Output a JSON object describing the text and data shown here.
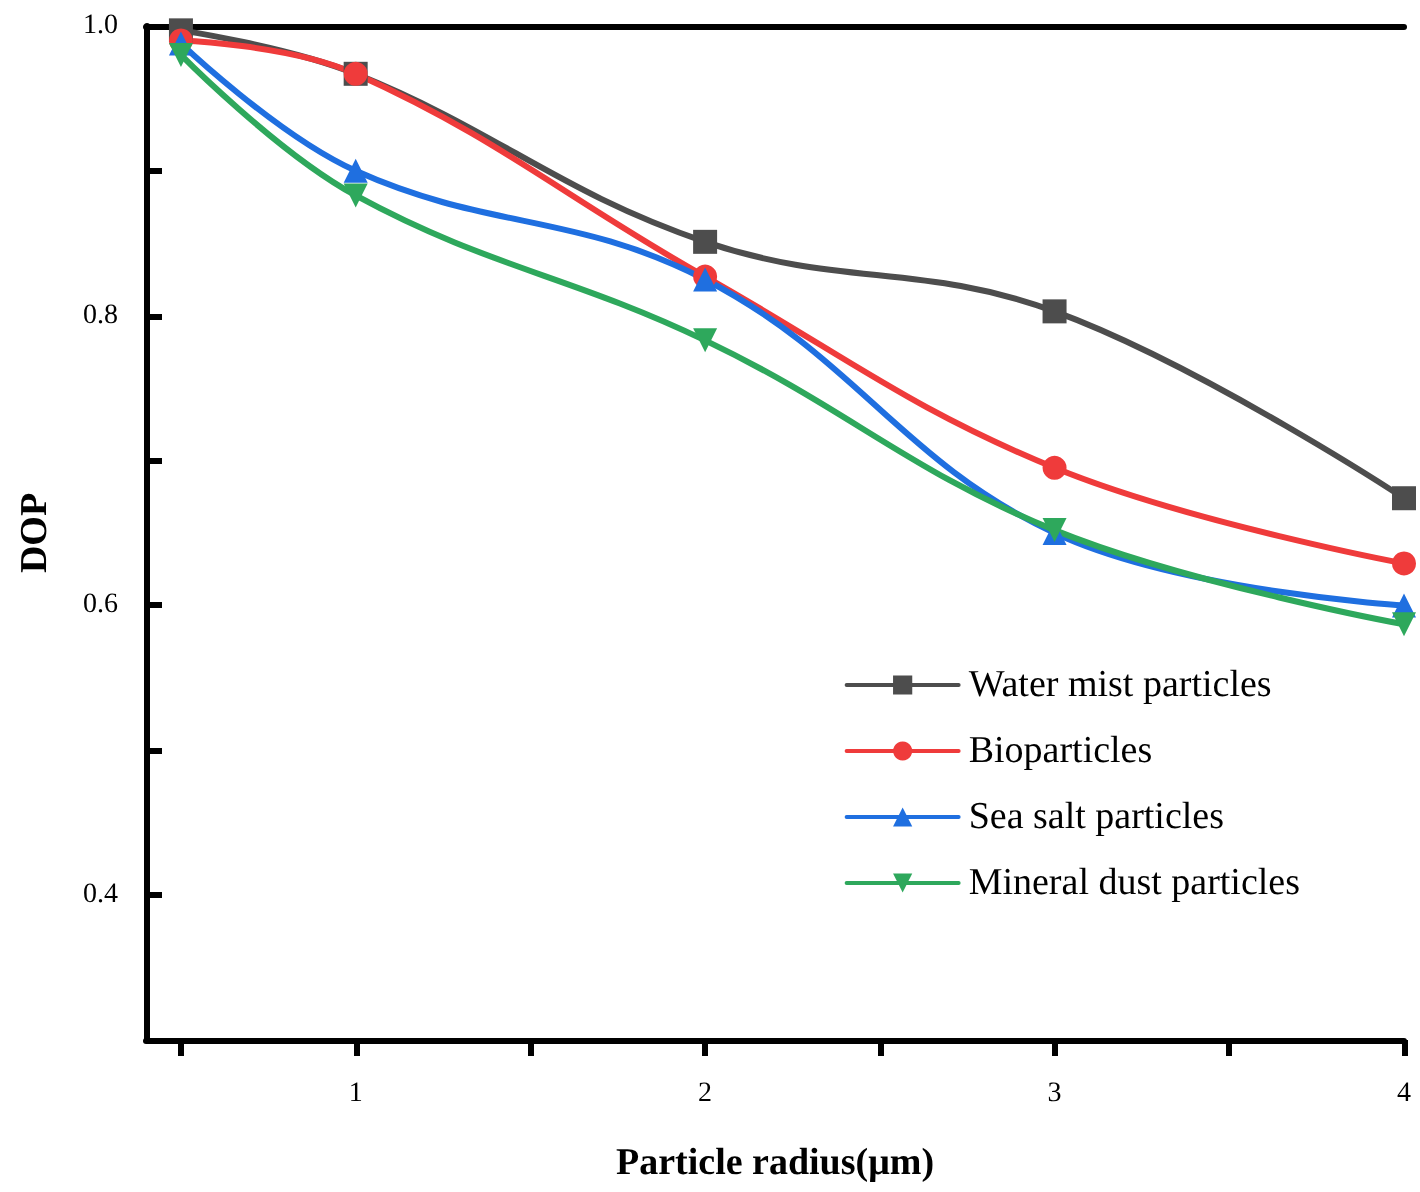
{
  "chart_data": {
    "type": "line",
    "xlabel": "Particle radius(μm)",
    "ylabel": "DOP",
    "x": [
      0.5,
      1,
      2,
      3,
      4
    ],
    "series": [
      {
        "name": "Water mist particles",
        "color": "#4d4d4d",
        "marker": "square",
        "values": [
          0.997,
          0.967,
          0.851,
          0.803,
          0.674
        ]
      },
      {
        "name": "Bioparticles",
        "color": "#ef3b3b",
        "marker": "circle",
        "values": [
          0.99,
          0.967,
          0.827,
          0.695,
          0.629
        ]
      },
      {
        "name": "Sea salt particles",
        "color": "#1f6fe0",
        "marker": "triangle",
        "values": [
          0.988,
          0.9,
          0.825,
          0.65,
          0.6
        ]
      },
      {
        "name": "Mineral dust particles",
        "color": "#2ea85c",
        "marker": "triangle-down",
        "values": [
          0.98,
          0.883,
          0.783,
          0.652,
          0.587
        ]
      }
    ],
    "xlim": [
      0.4,
      4
    ],
    "xticks": [
      {
        "value": 0.5,
        "label": null
      },
      1,
      {
        "value": 1.5,
        "label": null
      },
      2,
      {
        "value": 2.5,
        "label": null
      },
      3,
      {
        "value": 3.5,
        "label": null
      },
      4
    ],
    "ylim": [
      0.3,
      1
    ],
    "yticks": [
      0.4,
      {
        "value": 0.5,
        "label": null
      },
      0.6,
      {
        "value": 0.7,
        "label": null
      },
      0.8,
      {
        "value": 0.9,
        "label": null
      },
      {
        "value": 1,
        "label": "1.0"
      }
    ],
    "grid": false,
    "legend": "bottom right"
  }
}
